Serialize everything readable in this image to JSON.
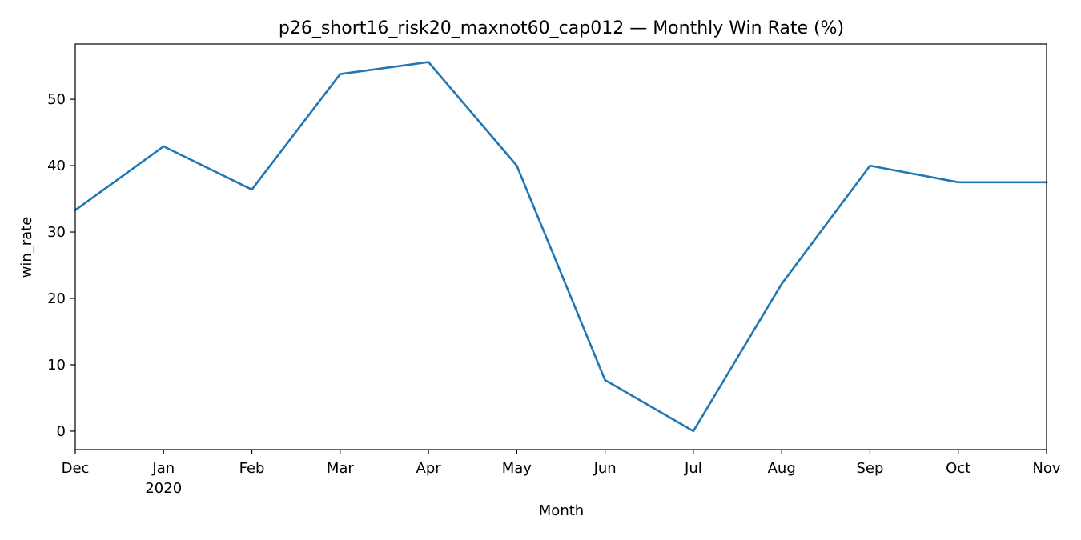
{
  "chart_data": {
    "type": "line",
    "title": "p26_short16_risk20_maxnot60_cap012 — Monthly Win Rate (%)",
    "xlabel": "Month",
    "ylabel": "win_rate",
    "x": [
      "2019-12",
      "2020-01",
      "2020-02",
      "2020-03",
      "2020-04",
      "2020-05",
      "2020-06",
      "2020-07",
      "2020-08",
      "2020-09",
      "2020-10",
      "2020-11"
    ],
    "x_tick_labels": [
      "Dec",
      "Jan",
      "Feb",
      "Mar",
      "Apr",
      "May",
      "Jun",
      "Jul",
      "Aug",
      "Sep",
      "Oct",
      "Nov"
    ],
    "x_tick_sublabel": {
      "index": 1,
      "text": "2020"
    },
    "series": [
      {
        "values": [
          33.3,
          42.9,
          36.4,
          53.8,
          55.6,
          40.0,
          7.7,
          0.0,
          22.2,
          40.0,
          37.5,
          37.5
        ],
        "color": "#1f77b4"
      }
    ],
    "yticks": [
      0,
      10,
      20,
      30,
      40,
      50
    ],
    "ylim": [
      -2.78,
      58.33
    ],
    "grid": false,
    "legend": "none"
  }
}
